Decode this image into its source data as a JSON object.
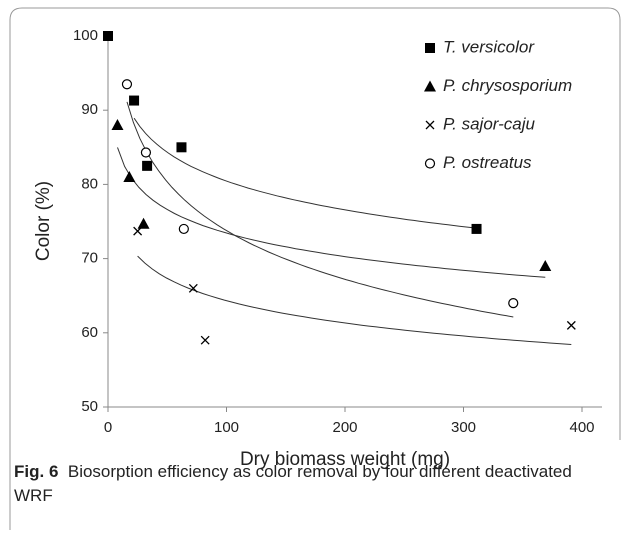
{
  "chart_data": {
    "type": "scatter",
    "x_label": "Dry biomass weight (mg)",
    "y_label": "Color (%)",
    "xlim": [
      0,
      400
    ],
    "xticks": [
      0,
      100,
      200,
      300,
      400
    ],
    "ylim": [
      50,
      100
    ],
    "yticks": [
      50,
      60,
      70,
      80,
      90,
      100
    ],
    "grid": false,
    "legend": "upper right",
    "trendline": "logarithmic",
    "series": [
      {
        "name": "T. versicolor",
        "marker": "square",
        "color": "#000000",
        "x": [
          0,
          22,
          33,
          62,
          311
        ],
        "values": [
          100,
          91.3,
          82.5,
          85,
          74
        ]
      },
      {
        "name": "P. chrysosporium",
        "marker": "triangle",
        "color": "#000000",
        "x": [
          8,
          18,
          30,
          369
        ],
        "values": [
          88,
          81,
          74.7,
          69
        ]
      },
      {
        "name": "P. sajor-caju",
        "marker": "cross",
        "color": "#000000",
        "x": [
          25,
          72,
          82,
          391
        ],
        "values": [
          73.7,
          66,
          59,
          61
        ]
      },
      {
        "name": "P. ostreatus",
        "marker": "circle",
        "color": "#000000",
        "x": [
          16,
          32,
          64,
          342
        ],
        "values": [
          93.5,
          84.3,
          74,
          64
        ]
      }
    ]
  },
  "caption": {
    "label": "Fig. 6",
    "text": "Biosorption efficiency as color removal by four different deactivated WRF"
  }
}
